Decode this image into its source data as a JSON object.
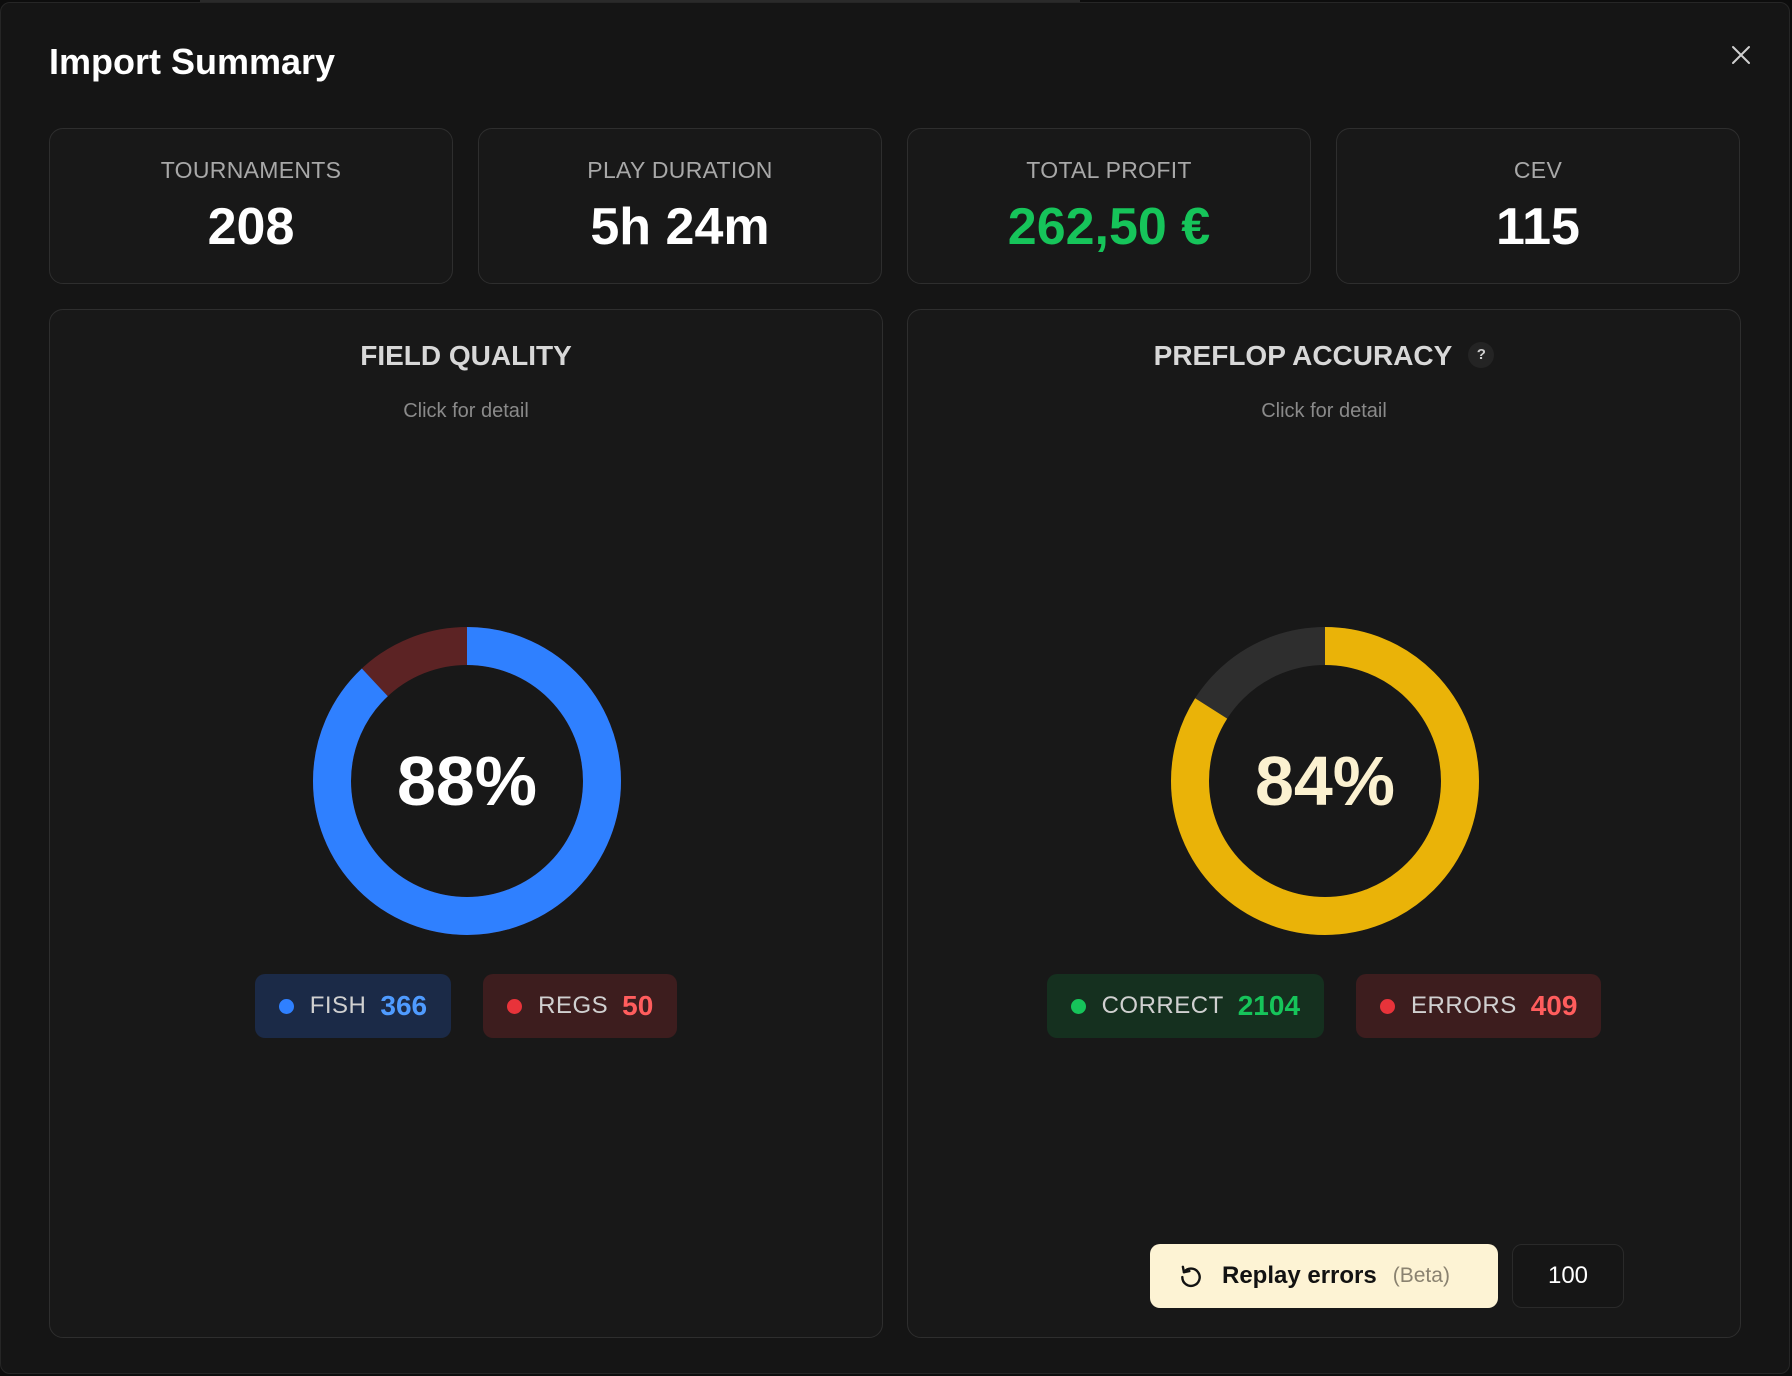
{
  "modal": {
    "title": "Import Summary",
    "close_icon": "close-icon"
  },
  "stats": [
    {
      "label": "TOURNAMENTS",
      "value": "208"
    },
    {
      "label": "PLAY DURATION",
      "value": "5h 24m"
    },
    {
      "label": "TOTAL PROFIT",
      "value": "262,50 €",
      "color": "#16c45a"
    },
    {
      "label": "CEV",
      "value": "115"
    }
  ],
  "field_quality": {
    "title": "FIELD QUALITY",
    "subtitle": "Click for detail",
    "percent": "88%",
    "fraction": 0.88,
    "main_color": "#2f80ff",
    "rest_color": "#5c2324",
    "legend": [
      {
        "label": "FISH",
        "value": "366",
        "dot_color": "#2f80ff",
        "value_color": "#4f9bff",
        "bg": "#1b2a47"
      },
      {
        "label": "REGS",
        "value": "50",
        "dot_color": "#e8333a",
        "value_color": "#ff5d5d",
        "bg": "#3d1d1e"
      }
    ]
  },
  "preflop_accuracy": {
    "title": "PREFLOP ACCURACY",
    "help_icon": "question-icon",
    "help_text": "?",
    "subtitle": "Click for detail",
    "percent": "84%",
    "fraction": 0.84,
    "main_color": "#eab308",
    "rest_color": "#2e2e2e",
    "center_color": "#fbf1d0",
    "legend": [
      {
        "label": "CORRECT",
        "value": "2104",
        "dot_color": "#16c45a",
        "value_color": "#16c45a",
        "bg": "#15301f"
      },
      {
        "label": "ERRORS",
        "value": "409",
        "dot_color": "#e8333a",
        "value_color": "#ff5d5d",
        "bg": "#3d1d1e"
      }
    ],
    "replay": {
      "icon": "replay-icon",
      "label": "Replay errors",
      "beta": "(Beta)",
      "count": "100"
    }
  }
}
